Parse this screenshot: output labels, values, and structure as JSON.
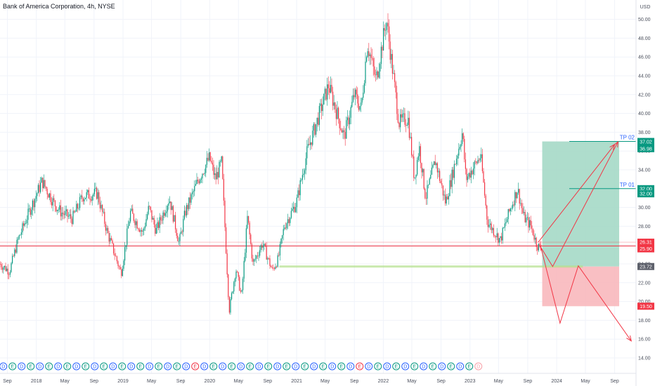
{
  "header": {
    "title": "Bank of America Corporation, 4h, NYSE"
  },
  "chart_data": {
    "type": "candlestick",
    "currency": "USD",
    "x_range": [
      "2017-08-01",
      "2024-11-30"
    ],
    "x_ticks": [
      {
        "label": "Sep",
        "date": "2017-09-01"
      },
      {
        "label": "2018",
        "date": "2018-01-01"
      },
      {
        "label": "May",
        "date": "2018-05-01"
      },
      {
        "label": "Sep",
        "date": "2018-09-01"
      },
      {
        "label": "2019",
        "date": "2019-01-01"
      },
      {
        "label": "May",
        "date": "2019-05-01"
      },
      {
        "label": "Sep",
        "date": "2019-09-01"
      },
      {
        "label": "2020",
        "date": "2020-01-01"
      },
      {
        "label": "May",
        "date": "2020-05-01"
      },
      {
        "label": "Sep",
        "date": "2020-09-01"
      },
      {
        "label": "2021",
        "date": "2021-01-01"
      },
      {
        "label": "May",
        "date": "2021-05-01"
      },
      {
        "label": "Sep",
        "date": "2021-09-01"
      },
      {
        "label": "2022",
        "date": "2022-01-01"
      },
      {
        "label": "May",
        "date": "2022-05-01"
      },
      {
        "label": "Sep",
        "date": "2022-09-01"
      },
      {
        "label": "2023",
        "date": "2023-01-01"
      },
      {
        "label": "May",
        "date": "2023-05-01"
      },
      {
        "label": "Sep",
        "date": "2023-09-01"
      },
      {
        "label": "2024",
        "date": "2024-01-01"
      },
      {
        "label": "May",
        "date": "2024-05-01"
      },
      {
        "label": "Sep",
        "date": "2024-09-01"
      }
    ],
    "y_range": [
      13,
      51
    ],
    "y_ticks": [
      "14.00",
      "16.00",
      "18.00",
      "20.00",
      "22.00",
      "24.00",
      "26.00",
      "28.00",
      "30.00",
      "32.00",
      "34.00",
      "36.00",
      "38.00",
      "40.00",
      "42.00",
      "44.00",
      "46.00",
      "48.00",
      "50.00"
    ],
    "price_path": [
      [
        "2017-08-01",
        24.0
      ],
      [
        "2017-09-10",
        23.2
      ],
      [
        "2017-10-15",
        26.5
      ],
      [
        "2017-12-01",
        29.5
      ],
      [
        "2018-01-25",
        32.8
      ],
      [
        "2018-03-15",
        30.5
      ],
      [
        "2018-04-15",
        29.5
      ],
      [
        "2018-06-01",
        28.8
      ],
      [
        "2018-07-15",
        31.2
      ],
      [
        "2018-09-15",
        31.5
      ],
      [
        "2018-10-25",
        27.5
      ],
      [
        "2018-12-24",
        23.0
      ],
      [
        "2019-02-01",
        29.5
      ],
      [
        "2019-03-25",
        27.3
      ],
      [
        "2019-04-20",
        30.0
      ],
      [
        "2019-05-20",
        27.5
      ],
      [
        "2019-07-15",
        31.0
      ],
      [
        "2019-08-25",
        26.2
      ],
      [
        "2019-09-20",
        29.5
      ],
      [
        "2019-11-15",
        33.0
      ],
      [
        "2019-12-31",
        35.3
      ],
      [
        "2020-01-25",
        33.0
      ],
      [
        "2020-02-20",
        34.8
      ],
      [
        "2020-03-23",
        19.0
      ],
      [
        "2020-04-20",
        23.5
      ],
      [
        "2020-05-14",
        20.5
      ],
      [
        "2020-06-08",
        29.0
      ],
      [
        "2020-07-01",
        24.0
      ],
      [
        "2020-08-10",
        26.2
      ],
      [
        "2020-09-20",
        23.3
      ],
      [
        "2020-10-15",
        24.5
      ],
      [
        "2020-11-10",
        28.0
      ],
      [
        "2020-12-31",
        30.5
      ],
      [
        "2021-02-15",
        36.0
      ],
      [
        "2021-04-01",
        39.5
      ],
      [
        "2021-05-15",
        43.0
      ],
      [
        "2021-07-20",
        37.5
      ],
      [
        "2021-09-01",
        42.0
      ],
      [
        "2021-09-30",
        40.5
      ],
      [
        "2021-10-25",
        47.5
      ],
      [
        "2021-12-01",
        43.5
      ],
      [
        "2022-01-14",
        50.0
      ],
      [
        "2022-03-08",
        39.0
      ],
      [
        "2022-04-15",
        39.5
      ],
      [
        "2022-05-12",
        33.0
      ],
      [
        "2022-06-01",
        36.5
      ],
      [
        "2022-06-28",
        31.0
      ],
      [
        "2022-08-08",
        35.0
      ],
      [
        "2022-09-20",
        30.5
      ],
      [
        "2022-11-30",
        38.0
      ],
      [
        "2022-12-15",
        33.0
      ],
      [
        "2023-02-15",
        35.5
      ],
      [
        "2023-03-15",
        28.5
      ],
      [
        "2023-05-08",
        26.5
      ],
      [
        "2023-06-15",
        29.5
      ],
      [
        "2023-07-20",
        32.0
      ],
      [
        "2023-08-15",
        29.0
      ],
      [
        "2023-09-15",
        28.0
      ],
      [
        "2023-10-10",
        26.0
      ],
      [
        "2023-10-27",
        25.6
      ]
    ],
    "horizontal_levels": [
      {
        "name": "resistance",
        "y": 26.31,
        "color": "#f23645"
      },
      {
        "name": "entry",
        "y": 25.9,
        "color": "#f23645"
      },
      {
        "name": "support-zone",
        "y": 23.72,
        "color": "#b2df8a",
        "from": "2020-10-20",
        "to": "2024-04-20"
      }
    ],
    "tp_lines": [
      {
        "label": "TP 02",
        "y": 37.02,
        "from": "2024-11-25"
      },
      {
        "label": "TP 01",
        "y": 32.0,
        "from": "2024-11-25"
      }
    ],
    "position": {
      "start": "2023-11-01",
      "end": "2024-09-20",
      "entry": 23.72,
      "target": 37.02,
      "stop": 19.5,
      "profit_color": "#a5d9c6",
      "loss_color": "#f8b8bd"
    },
    "projections": [
      {
        "name": "bull-path-a",
        "color": "#f23645",
        "points": [
          [
            "2023-10-20",
            26.0
          ],
          [
            "2023-12-15",
            23.72
          ],
          [
            "2024-09-15",
            36.98
          ]
        ]
      },
      {
        "name": "bull-path-b",
        "color": "#f23645",
        "points": [
          [
            "2023-10-15",
            26.3
          ],
          [
            "2024-09-01",
            36.7
          ]
        ]
      },
      {
        "name": "bear-path",
        "color": "#f23645",
        "points": [
          [
            "2023-10-25",
            25.9
          ],
          [
            "2024-01-15",
            17.7
          ],
          [
            "2024-04-01",
            23.8
          ],
          [
            "2024-11-10",
            15.8
          ]
        ]
      }
    ],
    "price_tags": [
      {
        "label": "37.02",
        "y": 37.02,
        "color": "#089981"
      },
      {
        "label": "37.02",
        "y": 36.98,
        "color": "#089981"
      },
      {
        "label": "36.98",
        "y": 36.25,
        "color": "#089981"
      },
      {
        "label": "32.00",
        "y": 32.0,
        "color": "#089981"
      },
      {
        "label": "32.00",
        "y": 31.45,
        "color": "#089981"
      },
      {
        "label": "26.31",
        "y": 26.31,
        "color": "#f23645"
      },
      {
        "label": "25.90",
        "y": 25.6,
        "color": "#f23645"
      },
      {
        "label": "23.72",
        "y": 23.72,
        "color": "#5d606b"
      },
      {
        "label": "19.50",
        "y": 19.5,
        "color": "#f23645"
      }
    ],
    "events": {
      "earnings_symbol": "E",
      "dividend_symbol": "D",
      "items": [
        "D",
        "E",
        "D",
        "E",
        "D",
        "E",
        "D",
        "E",
        "D",
        "E",
        "D",
        "E",
        "D",
        "E",
        "D",
        "E",
        "D",
        "E",
        "D",
        "E",
        "D",
        "E",
        "D",
        "E",
        "D",
        "E",
        "D",
        "E",
        "D",
        "E",
        "D",
        "E",
        "D",
        "E",
        "D",
        "E",
        "D",
        "E",
        "D",
        "E",
        "D",
        "E",
        "D",
        "E",
        "D",
        "E",
        "D",
        "E",
        "D",
        "E",
        "D",
        "E",
        "D",
        "E",
        "D",
        "E"
      ],
      "highlighted": [
        21,
        39
      ],
      "future": [
        55
      ]
    }
  }
}
